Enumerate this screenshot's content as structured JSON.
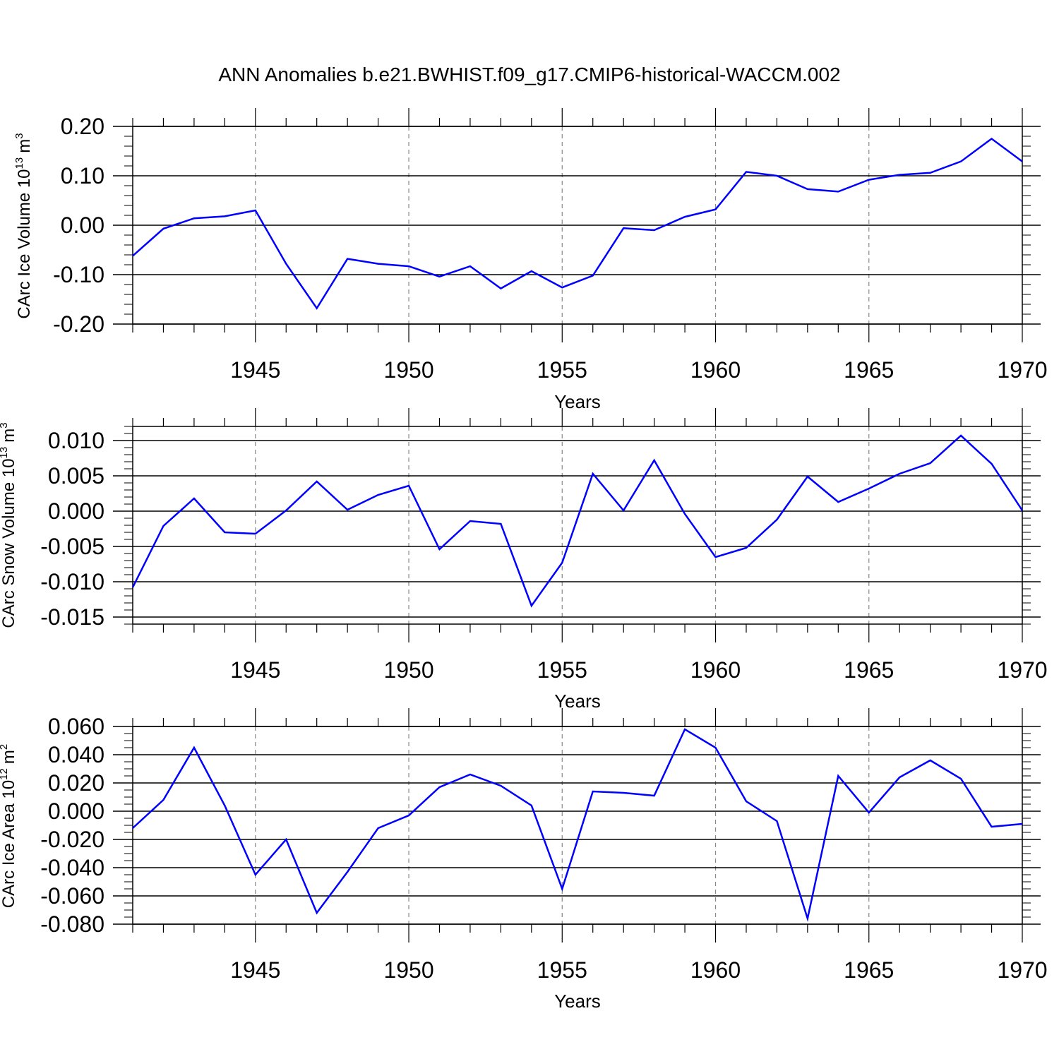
{
  "figure": {
    "title": "ANN Anomalies b.e21.BWHIST.f09_g17.CMIP6-historical-WACCM.002",
    "line_color": "#0000ff",
    "grid_color": "#888888"
  },
  "chart_data": [
    {
      "type": "line",
      "ylabel": "CArc Ice Volume 10",
      "ylabel_exp": "13",
      "ylabel_unit": "m",
      "ylabel_unit_exp": "3",
      "xlabel": "Years",
      "xlim": [
        1941,
        1970
      ],
      "ylim": [
        -0.2,
        0.2
      ],
      "ytick_values": [
        -0.2,
        -0.1,
        0.0,
        0.1,
        0.2
      ],
      "ytick_labels": [
        "-0.20",
        "-0.10",
        "0.00",
        "0.10",
        "0.20"
      ],
      "yminor_step": 0.02,
      "xtick_values": [
        1945,
        1950,
        1955,
        1960,
        1965,
        1970
      ],
      "xtick_labels": [
        "1945",
        "1950",
        "1955",
        "1960",
        "1965",
        "1970"
      ],
      "xgrid": true,
      "x": [
        1941,
        1942,
        1943,
        1944,
        1945,
        1946,
        1947,
        1948,
        1949,
        1950,
        1951,
        1952,
        1953,
        1954,
        1955,
        1956,
        1957,
        1958,
        1959,
        1960,
        1961,
        1962,
        1963,
        1964,
        1965,
        1966,
        1967,
        1968,
        1969,
        1970
      ],
      "series": [
        {
          "values": [
            -0.062,
            -0.007,
            0.014,
            0.018,
            0.03,
            -0.078,
            -0.168,
            -0.068,
            -0.078,
            -0.083,
            -0.104,
            -0.083,
            -0.128,
            -0.093,
            -0.126,
            -0.102,
            -0.006,
            -0.01,
            0.017,
            0.032,
            0.108,
            0.1,
            0.073,
            0.068,
            0.092,
            0.102,
            0.106,
            0.129,
            0.175,
            0.129
          ]
        }
      ]
    },
    {
      "type": "line",
      "ylabel": "CArc Snow Volume 10",
      "ylabel_exp": "13",
      "ylabel_unit": "m",
      "ylabel_unit_exp": "3",
      "xlabel": "Years",
      "xlim": [
        1941,
        1970
      ],
      "ylim": [
        -0.016,
        0.012
      ],
      "ytick_values": [
        -0.015,
        -0.01,
        -0.005,
        0.0,
        0.005,
        0.01
      ],
      "ytick_labels": [
        "-0.015",
        "-0.010",
        "-0.005",
        "0.000",
        "0.005",
        "0.010"
      ],
      "yminor_step": 0.001,
      "xtick_values": [
        1945,
        1950,
        1955,
        1960,
        1965,
        1970
      ],
      "xtick_labels": [
        "1945",
        "1950",
        "1955",
        "1960",
        "1965",
        "1970"
      ],
      "xgrid": true,
      "x": [
        1941,
        1942,
        1943,
        1944,
        1945,
        1946,
        1947,
        1948,
        1949,
        1950,
        1951,
        1952,
        1953,
        1954,
        1955,
        1956,
        1957,
        1958,
        1959,
        1960,
        1961,
        1962,
        1963,
        1964,
        1965,
        1966,
        1967,
        1968,
        1969,
        1970
      ],
      "series": [
        {
          "values": [
            -0.0108,
            -0.0021,
            0.0018,
            -0.003,
            -0.0032,
            0.0001,
            0.0042,
            0.0002,
            0.0023,
            0.0036,
            -0.0054,
            -0.0014,
            -0.0018,
            -0.0134,
            -0.0073,
            0.0053,
            0.0001,
            0.0072,
            -0.0004,
            -0.0065,
            -0.0052,
            -0.0012,
            0.0049,
            0.0013,
            0.0032,
            0.0053,
            0.0068,
            0.0107,
            0.0067,
            0.0001
          ]
        }
      ]
    },
    {
      "type": "line",
      "ylabel": "CArc Ice Area 10",
      "ylabel_exp": "12",
      "ylabel_unit": "m",
      "ylabel_unit_exp": "2",
      "xlabel": "Years",
      "xlim": [
        1941,
        1970
      ],
      "ylim": [
        -0.08,
        0.06
      ],
      "ytick_values": [
        -0.08,
        -0.06,
        -0.04,
        -0.02,
        0.0,
        0.02,
        0.04,
        0.06
      ],
      "ytick_labels": [
        "-0.080",
        "-0.060",
        "-0.040",
        "-0.020",
        "0.000",
        "0.020",
        "0.040",
        "0.060"
      ],
      "yminor_step": 0.005,
      "xtick_values": [
        1945,
        1950,
        1955,
        1960,
        1965,
        1970
      ],
      "xtick_labels": [
        "1945",
        "1950",
        "1955",
        "1960",
        "1965",
        "1970"
      ],
      "xgrid": true,
      "x": [
        1941,
        1942,
        1943,
        1944,
        1945,
        1946,
        1947,
        1948,
        1949,
        1950,
        1951,
        1952,
        1953,
        1954,
        1955,
        1956,
        1957,
        1958,
        1959,
        1960,
        1961,
        1962,
        1963,
        1964,
        1965,
        1966,
        1967,
        1968,
        1969,
        1970
      ],
      "series": [
        {
          "values": [
            -0.012,
            0.008,
            0.045,
            0.004,
            -0.045,
            -0.02,
            -0.072,
            -0.043,
            -0.012,
            -0.003,
            0.017,
            0.026,
            0.018,
            0.004,
            -0.055,
            0.014,
            0.013,
            0.011,
            0.058,
            0.045,
            0.007,
            -0.007,
            -0.076,
            0.025,
            -0.001,
            0.024,
            0.036,
            0.023,
            -0.011,
            -0.009
          ]
        }
      ]
    }
  ]
}
